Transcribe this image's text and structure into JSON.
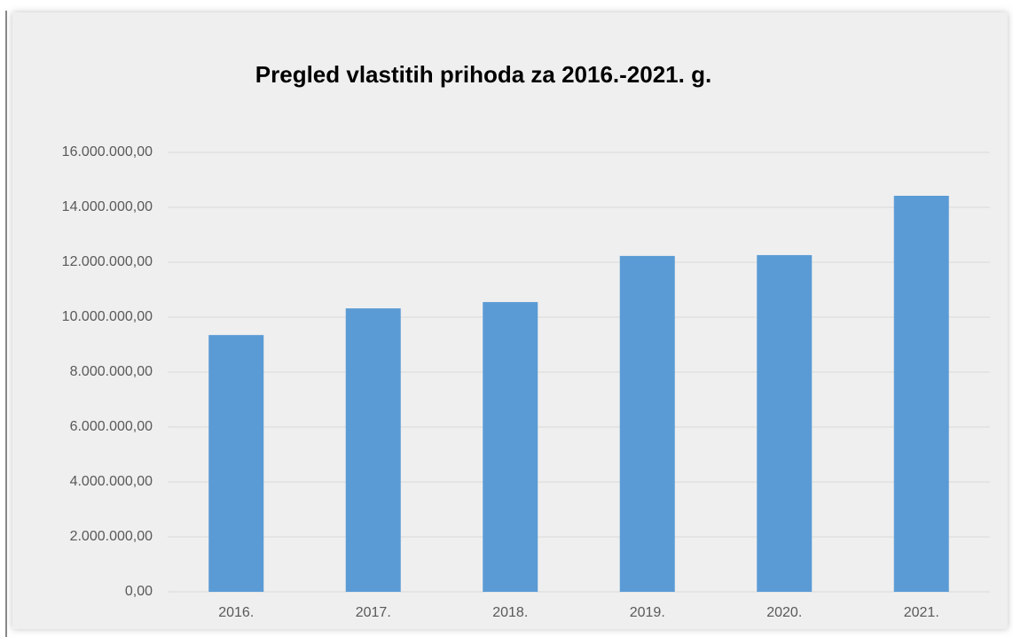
{
  "chart_data": {
    "type": "bar",
    "title": "Pregled vlastitih prihoda za 2016.-2021. g.",
    "categories": [
      "2016.",
      "2017.",
      "2018.",
      "2019.",
      "2020.",
      "2021."
    ],
    "values": [
      9350000,
      10320000,
      10550000,
      12230000,
      12260000,
      14420000
    ],
    "color": "#5b9bd5",
    "ylim": [
      0,
      16000000
    ],
    "yticks": [
      {
        "value": 0,
        "label": "0,00"
      },
      {
        "value": 2000000,
        "label": "2.000.000,00"
      },
      {
        "value": 4000000,
        "label": "4.000.000,00"
      },
      {
        "value": 6000000,
        "label": "6.000.000,00"
      },
      {
        "value": 8000000,
        "label": "8.000.000,00"
      },
      {
        "value": 10000000,
        "label": "10.000.000,00"
      },
      {
        "value": 12000000,
        "label": "12.000.000,00"
      },
      {
        "value": 14000000,
        "label": "14.000.000,00"
      },
      {
        "value": 16000000,
        "label": "16.000.000,00"
      }
    ],
    "grid": true
  }
}
